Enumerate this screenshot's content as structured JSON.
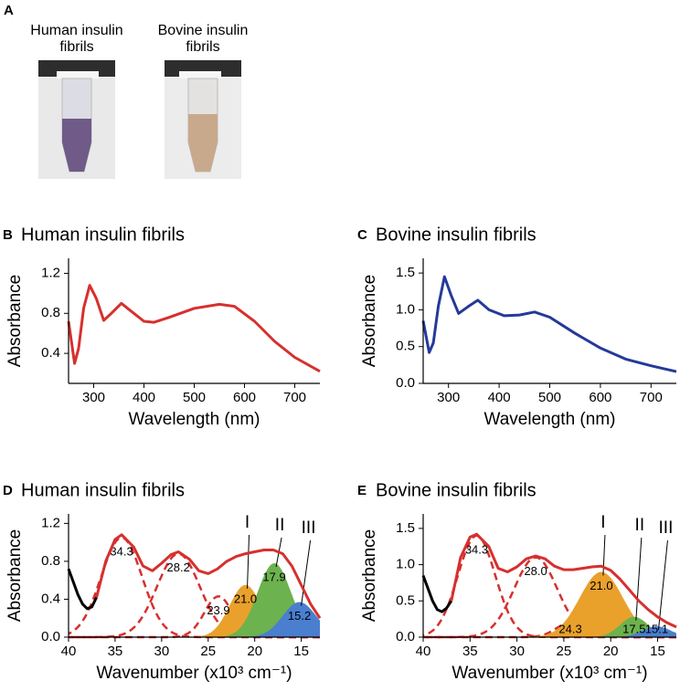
{
  "photos": {
    "panel": "A",
    "labels": [
      "Human insulin fibrils",
      "Bovine insulin fibrils"
    ]
  },
  "chart_data": [
    {
      "type": "line",
      "panel": "B",
      "title": "Human insulin fibrils",
      "xlabel": "Wavelength (nm)",
      "ylabel": "Absorbance",
      "xlim": [
        250,
        750
      ],
      "xticks": [
        300,
        400,
        500,
        600,
        700
      ],
      "ylim": [
        0.1,
        1.35
      ],
      "yticks": [
        0.4,
        0.8,
        1.2
      ],
      "series": [
        {
          "color": "#d6302e",
          "x": [
            250,
            262,
            270,
            280,
            292,
            305,
            320,
            335,
            355,
            370,
            400,
            420,
            450,
            500,
            550,
            580,
            620,
            660,
            700,
            750
          ],
          "values": [
            0.72,
            0.3,
            0.45,
            0.85,
            1.08,
            0.95,
            0.73,
            0.8,
            0.9,
            0.84,
            0.72,
            0.71,
            0.76,
            0.85,
            0.89,
            0.87,
            0.72,
            0.52,
            0.36,
            0.22
          ]
        }
      ]
    },
    {
      "type": "line",
      "panel": "C",
      "title": "Bovine insulin fibrils",
      "xlabel": "Wavelength (nm)",
      "ylabel": "Absorbance",
      "xlim": [
        250,
        750
      ],
      "xticks": [
        300,
        400,
        500,
        600,
        700
      ],
      "ylim": [
        0,
        1.7
      ],
      "yticks": [
        {
          "value": 0,
          "label": "0.0"
        },
        0.5,
        {
          "value": 1,
          "label": "1.0"
        },
        1.5
      ],
      "series": [
        {
          "color": "#25399a",
          "x": [
            250,
            262,
            270,
            280,
            292,
            305,
            320,
            340,
            358,
            380,
            410,
            440,
            470,
            500,
            550,
            600,
            650,
            700,
            750
          ],
          "values": [
            0.85,
            0.42,
            0.55,
            1.05,
            1.45,
            1.2,
            0.95,
            1.05,
            1.13,
            1.0,
            0.92,
            0.93,
            0.97,
            0.9,
            0.68,
            0.48,
            0.33,
            0.24,
            0.16
          ]
        }
      ]
    },
    {
      "type": "deconvolution",
      "panel": "D",
      "title": "Human insulin fibrils",
      "xlabel": "Wavenumber (x10³ cm⁻¹)",
      "ylabel": "Absorbance",
      "xlim": [
        40,
        13
      ],
      "xticks": [
        40,
        35,
        30,
        25,
        20,
        15
      ],
      "ylim": [
        0,
        1.3
      ],
      "yticks": [
        {
          "value": 0,
          "label": "0.0"
        },
        0.4,
        0.8,
        1.2
      ],
      "series": [
        {
          "color": "#000000",
          "x": [
            40,
            39,
            38.5,
            38,
            37.5,
            37
          ],
          "values": [
            0.72,
            0.45,
            0.35,
            0.3,
            0.32,
            0.42
          ]
        },
        {
          "color": "#d6302e",
          "x": [
            37,
            36,
            35,
            34.3,
            33,
            32,
            31,
            30,
            29,
            28.2,
            27,
            26,
            25,
            24,
            23,
            22,
            21,
            20,
            19,
            18,
            17,
            16,
            15,
            14,
            13
          ],
          "values": [
            0.42,
            0.8,
            1.03,
            1.08,
            0.95,
            0.75,
            0.7,
            0.78,
            0.87,
            0.9,
            0.82,
            0.7,
            0.67,
            0.72,
            0.8,
            0.85,
            0.88,
            0.9,
            0.92,
            0.92,
            0.88,
            0.75,
            0.55,
            0.35,
            0.2
          ]
        }
      ],
      "peaks": {
        "center": [
          34.3,
          28.2,
          23.9,
          21.0,
          17.9,
          15.2
        ],
        "value_labels": [
          "34.3",
          "28.2",
          "23.9",
          "21.0",
          "17.9",
          "15.2"
        ],
        "height": [
          1.05,
          0.88,
          0.43,
          0.55,
          0.78,
          0.37
        ],
        "width": [
          2.2,
          2.3,
          1.5,
          1.7,
          1.8,
          1.8
        ],
        "color": [
          "#d6302e",
          "#d6302e",
          "#d6302e",
          "#e9a12c",
          "#6cb24e",
          "#4a7fcf"
        ],
        "filled": [
          false,
          false,
          false,
          true,
          true,
          true
        ]
      },
      "annotations": [
        "I",
        "II",
        "III"
      ]
    },
    {
      "type": "deconvolution",
      "panel": "E",
      "title": "Bovine insulin fibrils",
      "xlabel": "Wavenumber (x10³ cm⁻¹)",
      "ylabel": "Absorbance",
      "xlim": [
        40,
        13
      ],
      "xticks": [
        40,
        35,
        30,
        25,
        20,
        15
      ],
      "ylim": [
        0,
        1.7
      ],
      "yticks": [
        {
          "value": 0,
          "label": "0.0"
        },
        0.5,
        {
          "value": 1,
          "label": "1.0"
        },
        1.5
      ],
      "series": [
        {
          "color": "#000000",
          "x": [
            40,
            39,
            38.5,
            38,
            37.5,
            37
          ],
          "values": [
            0.85,
            0.5,
            0.38,
            0.35,
            0.4,
            0.5
          ]
        },
        {
          "color": "#d6302e",
          "x": [
            37,
            36,
            35,
            34.3,
            33,
            32,
            31,
            30,
            29,
            28,
            27,
            26,
            25,
            24,
            23,
            22,
            21,
            20,
            19,
            18,
            17,
            16,
            15,
            14,
            13
          ],
          "values": [
            0.5,
            1.1,
            1.38,
            1.42,
            1.25,
            0.95,
            0.9,
            0.97,
            1.08,
            1.12,
            1.08,
            0.98,
            0.93,
            0.93,
            0.95,
            0.97,
            0.98,
            0.92,
            0.8,
            0.65,
            0.5,
            0.38,
            0.28,
            0.2,
            0.14
          ]
        }
      ],
      "peaks": {
        "center": [
          34.3,
          28.0,
          24.3,
          21.0,
          17.5,
          15.1
        ],
        "value_labels": [
          "34.3",
          "28.0",
          "24.3",
          "21.0",
          "17.5",
          "15.1"
        ],
        "height": [
          1.4,
          1.1,
          0.2,
          0.9,
          0.28,
          0.15
        ],
        "width": [
          2.0,
          2.3,
          1.5,
          2.3,
          1.5,
          1.5
        ],
        "color": [
          "#d6302e",
          "#d6302e",
          "#d6302e",
          "#e9a12c",
          "#6cb24e",
          "#4a7fcf"
        ],
        "filled": [
          false,
          false,
          false,
          true,
          true,
          true
        ]
      },
      "annotations": [
        "I",
        "II",
        "III"
      ]
    }
  ]
}
